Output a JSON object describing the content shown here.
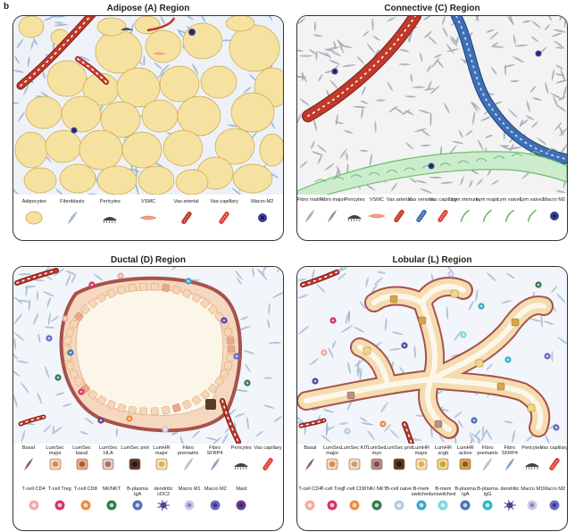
{
  "figure_label": "b",
  "panels": {
    "adipose": {
      "title": "Adipose (A) Region",
      "legend": [
        "Adipocytes",
        "Fibroblasts",
        "Pericytes",
        "VSMC",
        "Vas-arterial",
        "Vas-capillary",
        "Macro-M2"
      ]
    },
    "connective": {
      "title": "Connective (C) Region",
      "legend": [
        "Fibro matrix",
        "Fibro major",
        "Pericytes",
        "VSMC",
        "Vas arterial",
        "Vas venous",
        "Vas capillary",
        "Lym immune",
        "Lym major",
        "Lym valve1",
        "Lym valve2",
        "Macro M2"
      ]
    },
    "ductal": {
      "title": "Ductal (D) Region",
      "legend_row1": [
        "Basal",
        "LumSec major",
        "LumSec basal",
        "LumSec HLA",
        "LumSec prol",
        "LumHR major",
        "Fibro prematrix",
        "Fibro SFRP4",
        "Pericytes",
        "Vas capillary"
      ],
      "legend_row2": [
        "T-cell CD4",
        "T-cell Treg",
        "T-cell CD8",
        "NK/NKT",
        "B-plasma IgA",
        "dendritic cDC2",
        "Macro M1",
        "Macro M2",
        "Mast"
      ]
    },
    "lobular": {
      "title": "Lobular (L) Region",
      "legend_row1": [
        "Basal",
        "LumSec major",
        "LumSec KIT",
        "LumSec myo",
        "LumSec prol",
        "LumHR major",
        "LumHR scgb",
        "LumHR active",
        "Fibro prematrix",
        "Fibro SFRP4",
        "Pericytes",
        "Vas capillary"
      ],
      "legend_row2": [
        "T-cell CD4",
        "T-cell Treg",
        "T-cell CD8",
        "NK/ NKT",
        "B-cell naive",
        "B-mem switched",
        "B-mem unswitched",
        "B-plasma IgA",
        "B-plasma IgG",
        "dendritic",
        "Macro M1",
        "Macro M2"
      ]
    }
  },
  "colors": {
    "adipocyte": "#f6e2a0",
    "adipocyte_edge": "#c9a64b",
    "fibro_blue": "#a9c6e6",
    "fibro_grey": "#b9b9bd",
    "artery": "#c0392b",
    "vein": "#3f6fb5",
    "lymph": "#8fce8f",
    "duct_lumen": "#fcf6e9",
    "basal": "#a7524a",
    "lum_cell": "#f3c9a4",
    "macro": "#3b3f8f"
  }
}
